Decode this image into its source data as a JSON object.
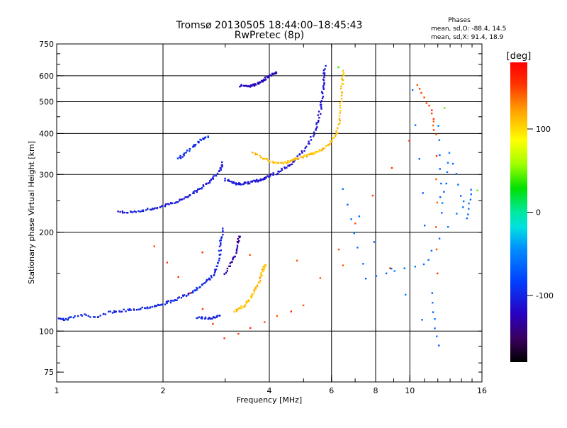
{
  "header": {
    "title": "Tromsø 20130505 18:44:00–18:45:43",
    "subtitle": "RwPretec (8p)",
    "phases_title": "Phases",
    "phases_o": "mean, sd,O: -88.4, 14.5",
    "phases_x": "mean, sd,X:  91.4, 18.9"
  },
  "chart_data": {
    "type": "scatter",
    "xlabel": "Frequency [MHz]",
    "ylabel": "Stationary phase Virtual Height [km]",
    "xscale": "log",
    "yscale": "log",
    "xlim": [
      1,
      16
    ],
    "ylim": [
      70,
      750
    ],
    "x_ticks": [
      1,
      2,
      4,
      6,
      8,
      10,
      16
    ],
    "x_tick_labels": [
      "1",
      "2",
      "4",
      "6",
      "8",
      "10",
      "16"
    ],
    "y_ticks": [
      75,
      100,
      200,
      300,
      400,
      500,
      600,
      750
    ],
    "y_tick_labels": [
      "75",
      "100",
      "200",
      "300",
      "400",
      "500",
      "600",
      "750"
    ],
    "x_grid": [
      2,
      4,
      6,
      8,
      10
    ],
    "y_grid": [
      100,
      200,
      300,
      400,
      500,
      600
    ],
    "grid": true,
    "colorbar": {
      "label": "[deg]",
      "range": [
        -180,
        180
      ],
      "ticks": [
        100,
        0,
        -100
      ],
      "tick_labels": [
        "100",
        "0",
        "-100"
      ]
    },
    "series": [
      {
        "phase": -100,
        "points": [
          [
            1.02,
            110
          ],
          [
            1.05,
            108
          ],
          [
            1.1,
            110
          ],
          [
            1.2,
            112
          ],
          [
            1.3,
            110
          ],
          [
            1.4,
            114
          ],
          [
            1.5,
            115
          ],
          [
            1.6,
            116
          ],
          [
            1.7,
            117
          ],
          [
            1.8,
            118
          ],
          [
            1.9,
            119
          ],
          [
            2.0,
            121
          ],
          [
            2.1,
            123
          ],
          [
            2.2,
            125
          ],
          [
            2.3,
            128
          ],
          [
            2.4,
            131
          ],
          [
            2.5,
            135
          ],
          [
            2.6,
            139
          ],
          [
            2.7,
            144
          ],
          [
            2.8,
            150
          ],
          [
            2.85,
            160
          ],
          [
            2.9,
            175
          ],
          [
            2.92,
            190
          ],
          [
            2.95,
            205
          ]
        ]
      },
      {
        "phase": -105,
        "points": [
          [
            1.5,
            230
          ],
          [
            1.6,
            231
          ],
          [
            1.7,
            232
          ],
          [
            1.8,
            234
          ],
          [
            1.9,
            237
          ],
          [
            2.0,
            240
          ],
          [
            2.1,
            244
          ],
          [
            2.2,
            249
          ],
          [
            2.3,
            255
          ],
          [
            2.4,
            261
          ],
          [
            2.5,
            268
          ],
          [
            2.6,
            276
          ],
          [
            2.7,
            285
          ],
          [
            2.8,
            296
          ],
          [
            2.9,
            310
          ],
          [
            2.95,
            325
          ]
        ]
      },
      {
        "phase": -110,
        "points": [
          [
            3.0,
            290
          ],
          [
            3.1,
            285
          ],
          [
            3.2,
            282
          ],
          [
            3.3,
            281
          ],
          [
            3.4,
            282
          ],
          [
            3.5,
            283
          ],
          [
            3.6,
            285
          ],
          [
            3.7,
            287
          ],
          [
            3.8,
            290
          ],
          [
            3.9,
            293
          ],
          [
            4.0,
            297
          ],
          [
            4.2,
            303
          ],
          [
            4.4,
            312
          ],
          [
            4.6,
            322
          ],
          [
            4.8,
            337
          ],
          [
            5.0,
            355
          ],
          [
            5.2,
            378
          ],
          [
            5.4,
            410
          ],
          [
            5.5,
            440
          ],
          [
            5.6,
            480
          ],
          [
            5.65,
            520
          ],
          [
            5.7,
            560
          ],
          [
            5.72,
            600
          ],
          [
            5.75,
            640
          ]
        ]
      },
      {
        "phase": -120,
        "points": [
          [
            3.3,
            560
          ],
          [
            3.4,
            558
          ],
          [
            3.5,
            557
          ],
          [
            3.6,
            560
          ],
          [
            3.7,
            568
          ],
          [
            3.8,
            578
          ],
          [
            3.9,
            588
          ],
          [
            4.0,
            598
          ],
          [
            4.1,
            608
          ],
          [
            4.2,
            615
          ]
        ]
      },
      {
        "phase": -95,
        "points": [
          [
            2.2,
            335
          ],
          [
            2.3,
            345
          ],
          [
            2.4,
            360
          ],
          [
            2.5,
            375
          ],
          [
            2.6,
            385
          ],
          [
            2.7,
            392
          ]
        ]
      },
      {
        "phase": -100,
        "points": [
          [
            2.5,
            110
          ],
          [
            2.6,
            110
          ],
          [
            2.7,
            109
          ],
          [
            2.8,
            110
          ],
          [
            2.9,
            111
          ]
        ]
      },
      {
        "phase": 110,
        "points": [
          [
            3.2,
            115
          ],
          [
            3.3,
            117
          ],
          [
            3.4,
            120
          ],
          [
            3.5,
            124
          ],
          [
            3.6,
            130
          ],
          [
            3.7,
            138
          ],
          [
            3.8,
            148
          ],
          [
            3.85,
            155
          ],
          [
            3.9,
            160
          ]
        ]
      },
      {
        "phase": 110,
        "points": [
          [
            3.6,
            350
          ],
          [
            3.8,
            338
          ],
          [
            4.0,
            330
          ],
          [
            4.2,
            325
          ],
          [
            4.4,
            326
          ],
          [
            4.6,
            330
          ],
          [
            4.8,
            335
          ],
          [
            5.0,
            340
          ],
          [
            5.2,
            345
          ],
          [
            5.4,
            350
          ],
          [
            5.6,
            356
          ],
          [
            5.8,
            365
          ],
          [
            6.0,
            378
          ],
          [
            6.2,
            398
          ],
          [
            6.3,
            430
          ],
          [
            6.35,
            480
          ],
          [
            6.4,
            530
          ],
          [
            6.45,
            580
          ],
          [
            6.5,
            620
          ]
        ]
      },
      {
        "phase": -130,
        "points": [
          [
            3.0,
            150
          ],
          [
            3.1,
            160
          ],
          [
            3.2,
            170
          ],
          [
            3.25,
            185
          ],
          [
            3.3,
            195
          ]
        ]
      },
      {
        "phase": 150,
        "points": [
          [
            10.5,
            560
          ],
          [
            11.5,
            470
          ],
          [
            11.8,
            400
          ],
          [
            12.0,
            150
          ],
          [
            1.9,
            180
          ],
          [
            3.0,
            95
          ],
          [
            5.0,
            120
          ],
          [
            9.9,
            380
          ]
        ]
      },
      {
        "phase": -60,
        "points": [
          [
            12.0,
            420
          ],
          [
            12.3,
            230
          ],
          [
            13.0,
            350
          ],
          [
            14.5,
            220
          ],
          [
            15.0,
            270
          ],
          [
            11.0,
            160
          ],
          [
            7.5,
            145
          ],
          [
            6.5,
            270
          ],
          [
            12.0,
            90
          ],
          [
            11.5,
            130
          ],
          [
            10.2,
            540
          ]
        ]
      },
      {
        "phase": 40,
        "points": [
          [
            6.3,
            640
          ],
          [
            12.5,
            480
          ],
          [
            15.5,
            270
          ]
        ]
      }
    ]
  }
}
